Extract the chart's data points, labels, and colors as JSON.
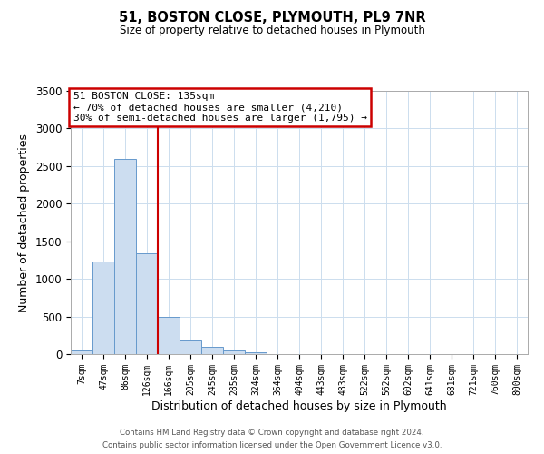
{
  "title": "51, BOSTON CLOSE, PLYMOUTH, PL9 7NR",
  "subtitle": "Size of property relative to detached houses in Plymouth",
  "xlabel": "Distribution of detached houses by size in Plymouth",
  "ylabel": "Number of detached properties",
  "footer_line1": "Contains HM Land Registry data © Crown copyright and database right 2024.",
  "footer_line2": "Contains public sector information licensed under the Open Government Licence v3.0.",
  "bar_labels": [
    "7sqm",
    "47sqm",
    "86sqm",
    "126sqm",
    "166sqm",
    "205sqm",
    "245sqm",
    "285sqm",
    "324sqm",
    "364sqm",
    "404sqm",
    "443sqm",
    "483sqm",
    "522sqm",
    "562sqm",
    "602sqm",
    "641sqm",
    "681sqm",
    "721sqm",
    "760sqm",
    "800sqm"
  ],
  "bar_values": [
    50,
    1230,
    2590,
    1340,
    490,
    195,
    100,
    45,
    30,
    0,
    0,
    0,
    0,
    0,
    0,
    0,
    0,
    0,
    0,
    0,
    0
  ],
  "bar_color": "#ccddf0",
  "bar_edgecolor": "#6699cc",
  "vline_x": 3.5,
  "vline_color": "#cc0000",
  "ylim": [
    0,
    3500
  ],
  "yticks": [
    0,
    500,
    1000,
    1500,
    2000,
    2500,
    3000,
    3500
  ],
  "annotation_title": "51 BOSTON CLOSE: 135sqm",
  "annotation_line1": "← 70% of detached houses are smaller (4,210)",
  "annotation_line2": "30% of semi-detached houses are larger (1,795) →",
  "annotation_box_color": "#cc0000",
  "bg_color": "#ffffff",
  "grid_color": "#ccddee"
}
